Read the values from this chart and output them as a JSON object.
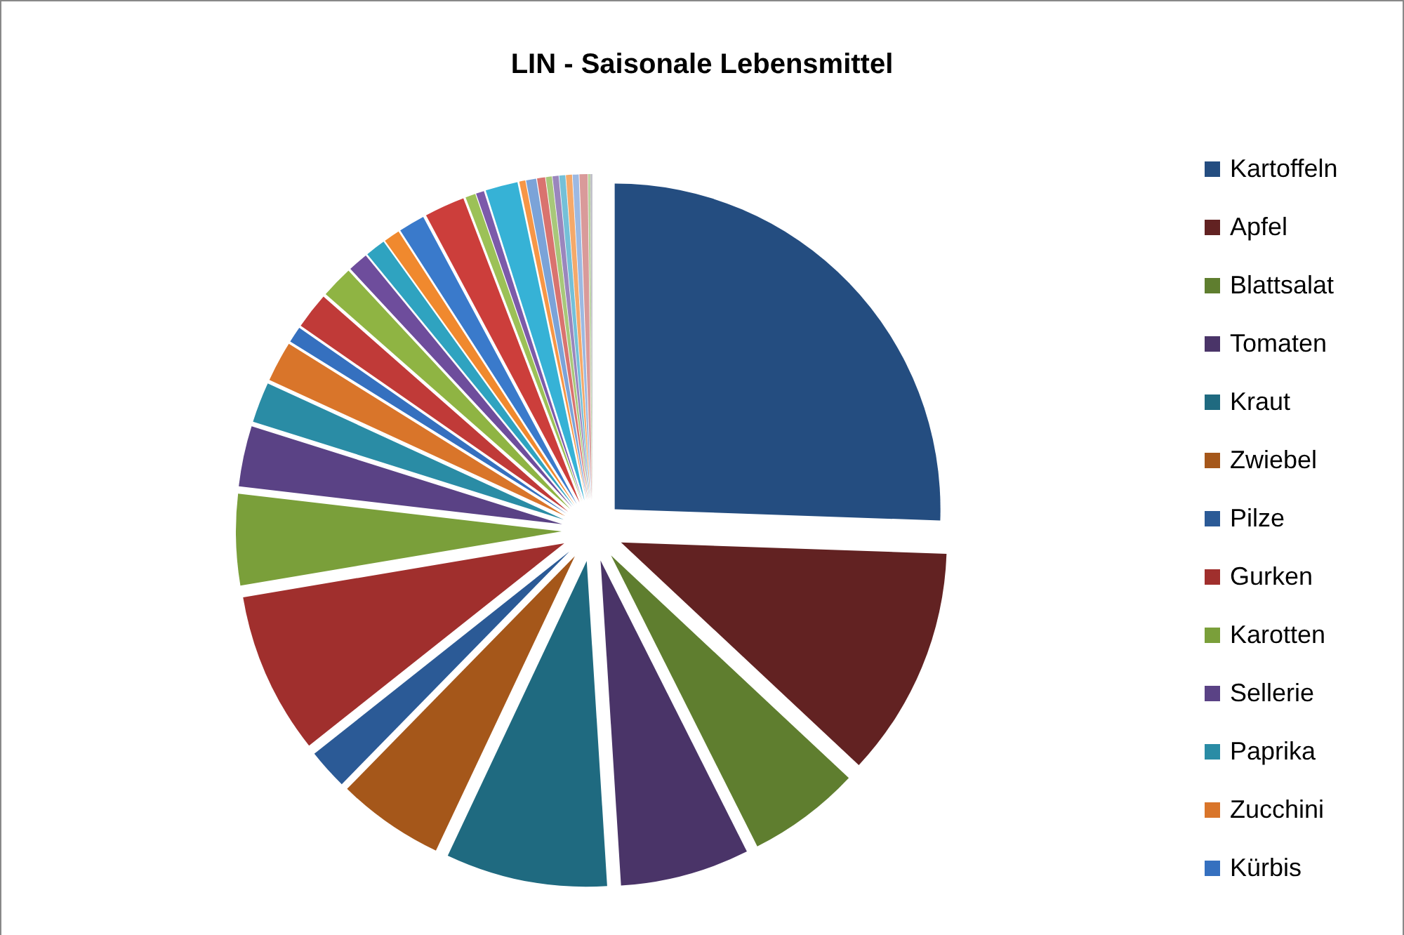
{
  "chart_data": {
    "type": "pie",
    "title": "LIN - Saisonale Lebensmittel",
    "categories": [
      "Kartoffeln",
      "Apfel",
      "Blattsalat",
      "Tomaten",
      "Kraut",
      "Zwiebel",
      "Pilze",
      "Gurken",
      "Karotten",
      "Sellerie",
      "Paprika",
      "Zucchini",
      "Kürbis",
      null,
      null,
      null,
      null,
      null,
      null,
      null,
      null,
      null,
      null,
      null,
      null,
      null,
      null,
      null,
      null,
      null,
      null,
      null,
      null,
      null
    ],
    "values": [
      25.5,
      11.4,
      5.6,
      6.4,
      8.0,
      5.3,
      2.0,
      8.0,
      4.5,
      3.0,
      2.0,
      2.0,
      0.8,
      1.8,
      1.6,
      1.0,
      1.0,
      0.8,
      1.3,
      2.0,
      0.5,
      0.4,
      1.6,
      0.3,
      0.5,
      0.4,
      0.3,
      0.3,
      0.3,
      0.3,
      0.3,
      0.4,
      0.1,
      0.1
    ],
    "colors": [
      "#244d80",
      "#622222",
      "#5f7e2f",
      "#4a3468",
      "#1f6a80",
      "#a5571a",
      "#2b5a96",
      "#a02f2d",
      "#7a9f3a",
      "#5a4285",
      "#2a8ca5",
      "#d9752a",
      "#3570bf",
      "#c03a38",
      "#8fb443",
      "#6e4d9c",
      "#2fa3c0",
      "#f0892e",
      "#3a7acb",
      "#cc3e3b",
      "#9cc157",
      "#7c5aaa",
      "#36b2d6",
      "#f79646",
      "#7ba3d8",
      "#d9736f",
      "#a8c87a",
      "#9a86bd",
      "#74c0d8",
      "#f5a96a",
      "#9cb9e2",
      "#d99a9a",
      "#b6d19a",
      "#c0c0c8"
    ],
    "legend": "right"
  }
}
